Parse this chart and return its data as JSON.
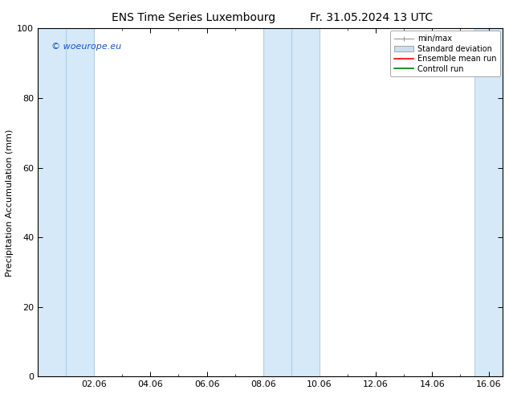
{
  "title_left": "ENS Time Series Luxembourg",
  "title_right": "Fr. 31.05.2024 13 UTC",
  "ylabel": "Precipitation Accumulation (mm)",
  "watermark": "© woeurope.eu",
  "ylim": [
    0,
    100
  ],
  "yticks": [
    0,
    20,
    40,
    60,
    80,
    100
  ],
  "xtick_positions": [
    2,
    4,
    6,
    8,
    10,
    12,
    14,
    16
  ],
  "xtick_labels": [
    "02.06",
    "04.06",
    "06.06",
    "08.06",
    "10.06",
    "12.06",
    "14.06",
    "16.06"
  ],
  "x_min": 0.0,
  "x_max": 16.5,
  "shaded_regions": [
    [
      0.0,
      1.0
    ],
    [
      1.0,
      2.0
    ],
    [
      8.0,
      9.0
    ],
    [
      9.0,
      10.0
    ],
    [
      15.5,
      16.5
    ]
  ],
  "band_fill_color": "#d6e9f8",
  "band_edge_color": "#b0cfe8",
  "background_color": "#ffffff",
  "title_fontsize": 10,
  "axis_label_fontsize": 8,
  "tick_fontsize": 8,
  "legend_fontsize": 7,
  "watermark_fontsize": 8,
  "legend_min_max_color": "#999999",
  "legend_std_color": "#ccdded",
  "legend_std_edge": "#999999",
  "legend_ens_color": "#ff0000",
  "legend_ctrl_color": "#007700"
}
